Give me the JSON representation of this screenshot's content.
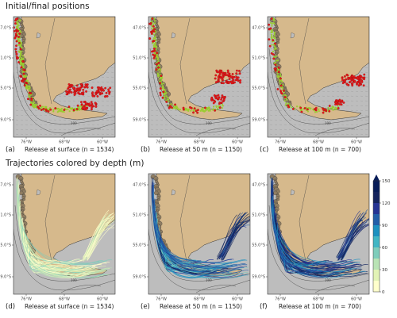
{
  "titles": {
    "top": "Initial/final positions",
    "bottom": "Trajectories colored by depth (m)"
  },
  "axes": {
    "y_ticks": [
      "47.0°S",
      "51.0°S",
      "55.0°S",
      "59.0°S"
    ],
    "x_ticks": [
      "76°W",
      "68°W",
      "60°W"
    ]
  },
  "panels": [
    {
      "letter": "(a)",
      "caption": "Release at surface (n = 1534)",
      "kind": "positions",
      "depth": "surface"
    },
    {
      "letter": "(b)",
      "caption": "Release at 50 m (n = 1150)",
      "kind": "positions",
      "depth": "50m"
    },
    {
      "letter": "(c)",
      "caption": "Release at 100 m (n = 700)",
      "kind": "positions",
      "depth": "100m"
    },
    {
      "letter": "(d)",
      "caption": "Release at surface (n = 1534)",
      "kind": "trajectories",
      "depth": "surface"
    },
    {
      "letter": "(e)",
      "caption": "Release at 50 m (n = 1150)",
      "kind": "trajectories",
      "depth": "50m"
    },
    {
      "letter": "(f)",
      "caption": "Release at 100 m (n = 700)",
      "kind": "trajectories",
      "depth": "100m"
    }
  ],
  "colorbar": {
    "ticks": [
      "150",
      "120",
      "90",
      "60",
      "30",
      "0"
    ],
    "colors": [
      "#ffffcc",
      "#e2f3b6",
      "#b9e3b5",
      "#7fcdbb",
      "#41b6c4",
      "#1d91c0",
      "#225ea8",
      "#253494",
      "#14245e",
      "#081d58"
    ]
  },
  "colors": {
    "land": "#d6b98c",
    "ocean": "#bdbdbd",
    "initial_positions": "#9acd32",
    "final_positions": "#e41a1c",
    "contour": "#555555"
  },
  "contour_label": "100"
}
